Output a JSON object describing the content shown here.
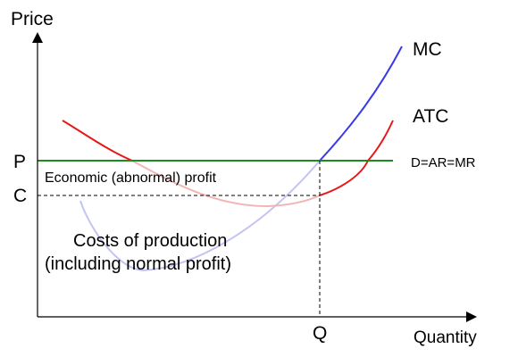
{
  "title": "",
  "axes": {
    "y_label": "Price",
    "x_label": "Quantity"
  },
  "curves": {
    "mc": {
      "label": "MC",
      "color": "#3a3ae8",
      "faded_color": "#c4c4f2"
    },
    "atc": {
      "label": "ATC",
      "color": "#e81818",
      "faded_color": "#f2b4b4"
    },
    "demand": {
      "label": "D=AR=MR",
      "color": "#1c8c1c"
    }
  },
  "levels": {
    "price": "P",
    "cost": "C",
    "quantity": "Q"
  },
  "regions": {
    "profit": "Economic (abnormal) profit",
    "costs_line1": "Costs of production",
    "costs_line2": "(including normal profit)"
  }
}
